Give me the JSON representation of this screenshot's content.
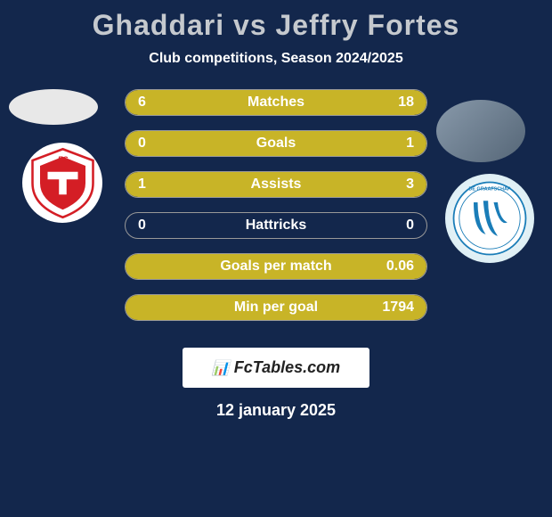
{
  "title": "Ghaddari vs Jeffry Fortes",
  "subtitle": "Club competitions, Season 2024/2025",
  "colors": {
    "background": "#13274c",
    "title": "#c5c9ce",
    "text": "#ffffff",
    "bar_fill": "#c8b427",
    "bar_border": "#999999",
    "footer_bg": "#ffffff",
    "footer_text": "#222222"
  },
  "typography": {
    "title_fontsize": 32,
    "subtitle_fontsize": 16,
    "stat_fontsize": 16,
    "date_fontsize": 18
  },
  "player_left": {
    "name": "Ghaddari",
    "club": "FC Utrecht"
  },
  "player_right": {
    "name": "Jeffry Fortes",
    "club": "De Graafschap"
  },
  "club_logos": {
    "left": {
      "primary": "#d41e25",
      "secondary": "#ffffff",
      "accent": "#000000"
    },
    "right": {
      "primary": "#1a7db8",
      "secondary": "#ffffff",
      "text": "DE GRAAFSCHAP"
    }
  },
  "stats": [
    {
      "label": "Matches",
      "left_value": "6",
      "right_value": "18",
      "left_pct": 25,
      "right_pct": 75
    },
    {
      "label": "Goals",
      "left_value": "0",
      "right_value": "1",
      "left_pct": 0,
      "right_pct": 100
    },
    {
      "label": "Assists",
      "left_value": "1",
      "right_value": "3",
      "left_pct": 25,
      "right_pct": 75
    },
    {
      "label": "Hattricks",
      "left_value": "0",
      "right_value": "0",
      "left_pct": 0,
      "right_pct": 0
    },
    {
      "label": "Goals per match",
      "left_value": "",
      "right_value": "0.06",
      "left_pct": 0,
      "right_pct": 100
    },
    {
      "label": "Min per goal",
      "left_value": "",
      "right_value": "1794",
      "left_pct": 0,
      "right_pct": 100
    }
  ],
  "footer": {
    "brand": "FcTables.com",
    "date": "12 january 2025"
  }
}
